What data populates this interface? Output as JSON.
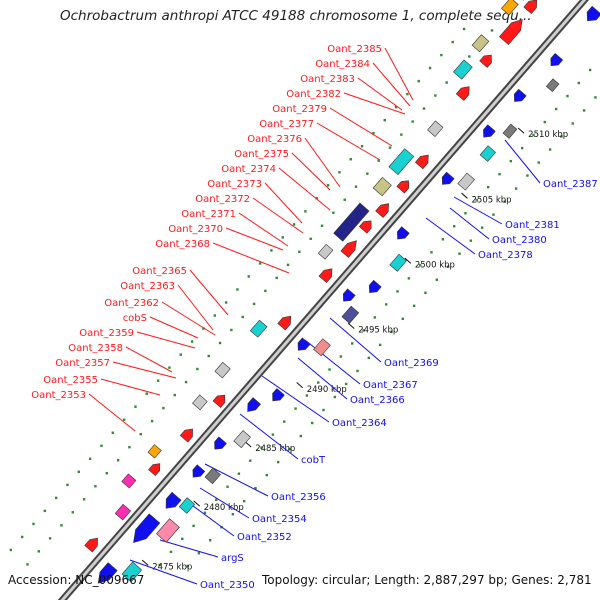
{
  "title": "Ochrobactrum anthropi ATCC 49188 chromosome 1, complete sequ...",
  "footer": {
    "accession": "Accession: NC_009667",
    "topology": "Topology: circular; Length: 2,887,297 bp; Genes: 2,781"
  },
  "colors": {
    "red": "#ff1a1a",
    "blue": "#1010ee",
    "cyan": "#19d1d1",
    "lightgray": "#c8c8c8",
    "darkgray": "#7a7a7a",
    "pink": "#ff89a8",
    "magenta": "#ff2db0",
    "orange": "#ffa500",
    "olive": "#c8c488",
    "navy": "#232388",
    "darkslate": "#4f4f9a",
    "salmon": "#f08c8c",
    "teal": "#30b8b8",
    "green": "#2e8b2e"
  },
  "scale_labels": [
    "2475 kbp",
    "2480 kbp",
    "2485 kbp",
    "2490 kbp",
    "2495 kbp",
    "2500 kbp",
    "2505 kbp",
    "2510 kbp"
  ],
  "top_labels": [
    "Oant_2385",
    "Oant_2384",
    "Oant_2383",
    "Oant_2382",
    "Oant_2379",
    "Oant_2377",
    "Oant_2376",
    "Oant_2375",
    "Oant_2374",
    "Oant_2373",
    "Oant_2372",
    "Oant_2371",
    "Oant_2370",
    "Oant_2368",
    "Oant_2365",
    "Oant_2363",
    "Oant_2362",
    "cobS",
    "Oant_2359",
    "Oant_2358",
    "Oant_2357",
    "Oant_2355",
    "Oant_2353"
  ],
  "bottom_labels": [
    "Oant_2387",
    "Oant_2381",
    "Oant_2380",
    "Oant_2378",
    "Oant_2369",
    "Oant_2367",
    "Oant_2366",
    "Oant_2364",
    "cobT",
    "Oant_2356",
    "Oant_2354",
    "Oant_2352",
    "argS",
    "Oant_2350"
  ]
}
